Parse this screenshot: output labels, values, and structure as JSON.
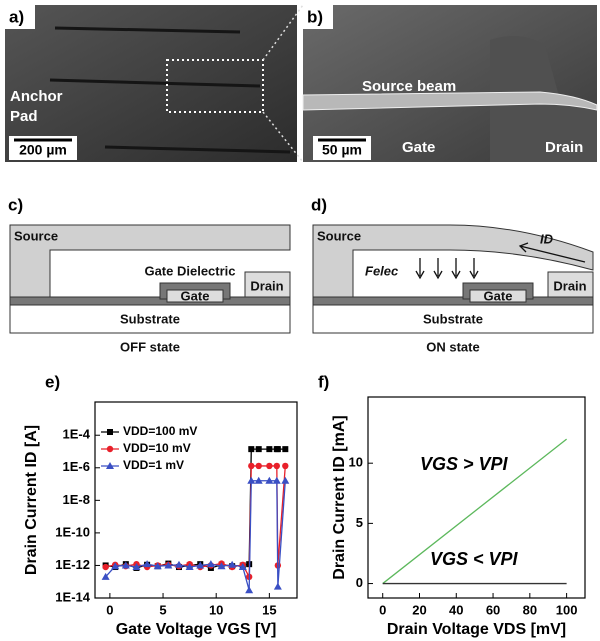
{
  "panels": [
    {
      "label": "a)",
      "texts": [
        "Anchor",
        "Pad"
      ],
      "scale_bar": "200 µm"
    },
    {
      "label": "b)",
      "texts": [
        "Source beam",
        "Gate",
        "Drain"
      ],
      "scale_bar": "50 µm"
    },
    {
      "label": "c)",
      "texts": [
        "Source",
        "Gate Dielectric",
        "Gate",
        "Drain",
        "Substrate"
      ],
      "caption": "OFF state"
    },
    {
      "label": "d)",
      "texts": [
        "Source",
        "ID",
        "Felec",
        "Gate",
        "Drain",
        "Substrate"
      ],
      "caption": "ON state"
    }
  ],
  "chart_data": [
    {
      "type": "line",
      "label": "e)",
      "x_label": "Gate Voltage VGS [V]",
      "y_label": "Drain Current ID [A]",
      "log_y": true,
      "x": [
        -0.4,
        0.5,
        1.5,
        2.5,
        3.5,
        4.5,
        5.5,
        6.5,
        7.5,
        8.5,
        9.5,
        10.5,
        11.5,
        12.5,
        13.1,
        13.3,
        14,
        15,
        15.7,
        15.8,
        16.5
      ],
      "series": [
        {
          "name": "VDD=100 mV",
          "color": "#000000",
          "marker": "square",
          "values": [
            1e-12,
            8e-13,
            1.2e-12,
            7e-13,
            1.1e-12,
            9e-13,
            1.3e-12,
            8e-13,
            1e-12,
            1.2e-12,
            7e-13,
            1.1e-12,
            9e-13,
            1e-12,
            1.2e-12,
            1.4e-05,
            1.4e-05,
            1.4e-05,
            1.4e-05,
            1.4e-05,
            1.4e-05
          ]
        },
        {
          "name": "VDD=10 mV",
          "color": "#e8202a",
          "marker": "circle",
          "values": [
            8e-13,
            1.1e-12,
            9e-13,
            1.2e-12,
            8e-13,
            1e-12,
            1.1e-12,
            9e-13,
            1.2e-12,
            8e-13,
            1e-12,
            1.3e-12,
            8e-13,
            1.1e-12,
            2e-13,
            1.3e-06,
            1.3e-06,
            1.3e-06,
            1.3e-06,
            1e-12,
            1.3e-06
          ]
        },
        {
          "name": "VDD=1 mV",
          "color": "#3a4fc4",
          "marker": "triangle",
          "values": [
            2e-13,
            9e-13,
            1e-12,
            8e-13,
            1.2e-12,
            9e-13,
            1e-12,
            1.1e-12,
            8e-13,
            1e-12,
            1.2e-12,
            9e-13,
            1.1e-12,
            8e-13,
            3e-14,
            1.6e-07,
            1.6e-07,
            1.6e-07,
            1.6e-07,
            5e-14,
            1.6e-07
          ]
        }
      ],
      "xlim": [
        -1.4,
        17.6
      ],
      "ylim": [
        1e-14,
        0.011
      ],
      "xticks": [
        0,
        5,
        10,
        15
      ],
      "yticks": [
        {
          "value": 0.0001,
          "label": "1E-4"
        },
        {
          "value": 1e-06,
          "label": "1E-6"
        },
        {
          "value": 1e-08,
          "label": "1E-8"
        },
        {
          "value": 1e-10,
          "label": "1E-10"
        },
        {
          "value": 1e-12,
          "label": "1E-12"
        },
        {
          "value": 1e-14,
          "label": "1E-14"
        }
      ],
      "legend": "upper left"
    },
    {
      "type": "line",
      "label": "f)",
      "x_label": "Drain Voltage VDS [mV]",
      "y_label": "Drain Current ID [mA]",
      "annotations": [
        "VGS > VPI",
        "VGS < VPI"
      ],
      "x": [
        0,
        100
      ],
      "series": [
        {
          "color": "#5cb85c",
          "values": [
            0,
            12
          ]
        },
        {
          "color": "#333333",
          "values": [
            0,
            0
          ]
        }
      ],
      "xlim": [
        -8,
        110
      ],
      "ylim": [
        -1.2,
        15.5
      ],
      "xticks": [
        0,
        20,
        40,
        60,
        80,
        100
      ],
      "yticks": [
        0,
        5,
        10
      ]
    }
  ]
}
